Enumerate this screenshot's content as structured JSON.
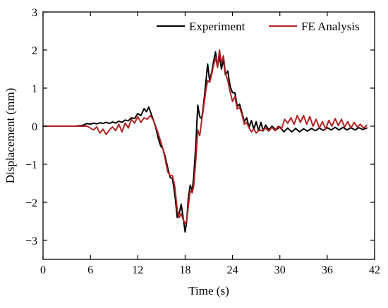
{
  "chart_data": {
    "type": "line",
    "title": "",
    "xlabel": "Time (s)",
    "ylabel": "Displacement (mm)",
    "xlim": [
      0,
      42
    ],
    "ylim": [
      -3.5,
      3
    ],
    "x_ticks": [
      0,
      6,
      12,
      18,
      24,
      30,
      36,
      42
    ],
    "y_ticks": [
      3,
      2,
      1,
      0,
      -1,
      -2,
      -3
    ],
    "x_tick_labels": [
      "0",
      "6",
      "12",
      "18",
      "24",
      "30",
      "36",
      "42"
    ],
    "y_tick_labels": [
      "3",
      "2",
      "1",
      "0",
      "−1",
      "−2",
      "−3"
    ],
    "legend_position": "top-right",
    "grid": false,
    "series": [
      {
        "name": "Experiment",
        "color": "#000000",
        "points": [
          [
            0.0,
            0.0
          ],
          [
            4.0,
            0.0
          ],
          [
            5.0,
            0.02
          ],
          [
            5.6,
            0.07
          ],
          [
            6.0,
            0.05
          ],
          [
            6.4,
            0.08
          ],
          [
            6.8,
            0.06
          ],
          [
            7.2,
            0.09
          ],
          [
            7.6,
            0.07
          ],
          [
            8.0,
            0.1
          ],
          [
            8.4,
            0.07
          ],
          [
            8.8,
            0.11
          ],
          [
            9.2,
            0.08
          ],
          [
            9.6,
            0.13
          ],
          [
            10.0,
            0.1
          ],
          [
            10.4,
            0.16
          ],
          [
            10.8,
            0.14
          ],
          [
            11.2,
            0.22
          ],
          [
            11.6,
            0.2
          ],
          [
            12.0,
            0.33
          ],
          [
            12.4,
            0.28
          ],
          [
            12.8,
            0.46
          ],
          [
            13.1,
            0.38
          ],
          [
            13.4,
            0.5
          ],
          [
            13.7,
            0.32
          ],
          [
            14.0,
            0.15
          ],
          [
            14.3,
            -0.05
          ],
          [
            14.6,
            -0.32
          ],
          [
            14.9,
            -0.52
          ],
          [
            15.2,
            -0.6
          ],
          [
            15.5,
            -0.82
          ],
          [
            15.8,
            -1.1
          ],
          [
            16.1,
            -1.35
          ],
          [
            16.4,
            -1.38
          ],
          [
            16.7,
            -1.8
          ],
          [
            17.0,
            -2.4
          ],
          [
            17.25,
            -2.3
          ],
          [
            17.5,
            -2.05
          ],
          [
            17.75,
            -2.4
          ],
          [
            18.0,
            -2.78
          ],
          [
            18.2,
            -2.5
          ],
          [
            18.4,
            -1.9
          ],
          [
            18.65,
            -1.55
          ],
          [
            18.9,
            -1.7
          ],
          [
            19.1,
            -1.3
          ],
          [
            19.35,
            -0.5
          ],
          [
            19.6,
            0.55
          ],
          [
            19.85,
            0.25
          ],
          [
            20.1,
            0.2
          ],
          [
            20.35,
            0.6
          ],
          [
            20.6,
            1.1
          ],
          [
            20.85,
            1.63
          ],
          [
            21.1,
            1.2
          ],
          [
            21.35,
            1.4
          ],
          [
            21.6,
            1.7
          ],
          [
            21.85,
            1.95
          ],
          [
            22.1,
            1.55
          ],
          [
            22.35,
            1.85
          ],
          [
            22.6,
            1.5
          ],
          [
            22.85,
            1.75
          ],
          [
            23.1,
            1.35
          ],
          [
            23.4,
            1.45
          ],
          [
            23.7,
            1.05
          ],
          [
            24.0,
            0.88
          ],
          [
            24.3,
            0.88
          ],
          [
            24.6,
            0.52
          ],
          [
            24.9,
            0.58
          ],
          [
            25.2,
            0.35
          ],
          [
            25.5,
            0.12
          ],
          [
            25.8,
            0.22
          ],
          [
            26.1,
            -0.03
          ],
          [
            26.4,
            0.15
          ],
          [
            26.7,
            -0.08
          ],
          [
            27.0,
            0.12
          ],
          [
            27.3,
            -0.12
          ],
          [
            27.6,
            0.1
          ],
          [
            27.9,
            -0.12
          ],
          [
            28.2,
            0.03
          ],
          [
            28.6,
            -0.1
          ],
          [
            29.0,
            0.0
          ],
          [
            29.5,
            -0.1
          ],
          [
            30.0,
            -0.02
          ],
          [
            30.5,
            -0.15
          ],
          [
            31.0,
            -0.05
          ],
          [
            31.5,
            -0.15
          ],
          [
            32.0,
            -0.06
          ],
          [
            32.5,
            -0.15
          ],
          [
            33.0,
            -0.07
          ],
          [
            33.5,
            -0.13
          ],
          [
            34.0,
            -0.06
          ],
          [
            34.5,
            -0.12
          ],
          [
            35.0,
            -0.05
          ],
          [
            35.5,
            -0.11
          ],
          [
            36.0,
            -0.04
          ],
          [
            36.5,
            -0.1
          ],
          [
            37.0,
            -0.03
          ],
          [
            37.5,
            -0.1
          ],
          [
            38.0,
            -0.03
          ],
          [
            38.5,
            -0.1
          ],
          [
            39.0,
            -0.04
          ],
          [
            39.5,
            -0.1
          ],
          [
            40.0,
            -0.04
          ],
          [
            40.5,
            -0.09
          ],
          [
            41.0,
            -0.05
          ]
        ]
      },
      {
        "name": "FE Analysis",
        "color": "#b22222",
        "points": [
          [
            0.0,
            0.0
          ],
          [
            5.6,
            0.0
          ],
          [
            6.0,
            -0.05
          ],
          [
            6.4,
            -0.1
          ],
          [
            6.8,
            -0.02
          ],
          [
            7.2,
            -0.18
          ],
          [
            7.6,
            -0.08
          ],
          [
            8.0,
            -0.22
          ],
          [
            8.4,
            -0.1
          ],
          [
            8.8,
            -0.02
          ],
          [
            9.2,
            -0.12
          ],
          [
            9.6,
            0.05
          ],
          [
            10.0,
            -0.15
          ],
          [
            10.4,
            0.08
          ],
          [
            10.8,
            -0.05
          ],
          [
            11.2,
            0.18
          ],
          [
            11.6,
            0.08
          ],
          [
            12.0,
            0.25
          ],
          [
            12.4,
            0.1
          ],
          [
            12.8,
            0.22
          ],
          [
            13.2,
            0.18
          ],
          [
            13.6,
            0.28
          ],
          [
            14.0,
            0.15
          ],
          [
            14.3,
            -0.02
          ],
          [
            14.6,
            -0.2
          ],
          [
            14.9,
            -0.4
          ],
          [
            15.2,
            -0.6
          ],
          [
            15.5,
            -0.9
          ],
          [
            15.8,
            -1.2
          ],
          [
            16.1,
            -1.3
          ],
          [
            16.4,
            -1.3
          ],
          [
            16.7,
            -1.6
          ],
          [
            17.0,
            -2.2
          ],
          [
            17.25,
            -2.4
          ],
          [
            17.5,
            -2.3
          ],
          [
            17.75,
            -2.45
          ],
          [
            18.0,
            -2.55
          ],
          [
            18.2,
            -2.5
          ],
          [
            18.4,
            -2.1
          ],
          [
            18.65,
            -1.7
          ],
          [
            18.9,
            -1.75
          ],
          [
            19.1,
            -1.55
          ],
          [
            19.35,
            -0.9
          ],
          [
            19.6,
            -0.1
          ],
          [
            19.85,
            -0.25
          ],
          [
            20.1,
            0.15
          ],
          [
            20.35,
            0.5
          ],
          [
            20.6,
            0.9
          ],
          [
            20.85,
            1.2
          ],
          [
            21.1,
            1.15
          ],
          [
            21.35,
            1.35
          ],
          [
            21.6,
            1.6
          ],
          [
            21.85,
            1.8
          ],
          [
            22.1,
            1.55
          ],
          [
            22.35,
            2.0
          ],
          [
            22.6,
            1.65
          ],
          [
            22.85,
            1.85
          ],
          [
            23.1,
            1.4
          ],
          [
            23.4,
            1.2
          ],
          [
            23.7,
            0.9
          ],
          [
            24.0,
            0.65
          ],
          [
            24.3,
            0.78
          ],
          [
            24.6,
            0.45
          ],
          [
            24.9,
            0.5
          ],
          [
            25.2,
            0.3
          ],
          [
            25.5,
            0.05
          ],
          [
            25.8,
            0.1
          ],
          [
            26.1,
            -0.05
          ],
          [
            26.4,
            -0.15
          ],
          [
            26.7,
            -0.08
          ],
          [
            27.0,
            -0.18
          ],
          [
            27.4,
            -0.1
          ],
          [
            27.8,
            -0.12
          ],
          [
            28.2,
            -0.05
          ],
          [
            28.6,
            -0.13
          ],
          [
            29.0,
            -0.03
          ],
          [
            29.4,
            -0.12
          ],
          [
            29.8,
            0.0
          ],
          [
            30.2,
            -0.08
          ],
          [
            30.6,
            0.18
          ],
          [
            31.0,
            0.08
          ],
          [
            31.4,
            0.22
          ],
          [
            31.8,
            0.05
          ],
          [
            32.2,
            0.28
          ],
          [
            32.6,
            0.1
          ],
          [
            33.0,
            0.28
          ],
          [
            33.4,
            0.05
          ],
          [
            33.8,
            0.25
          ],
          [
            34.2,
            0.0
          ],
          [
            34.6,
            0.18
          ],
          [
            35.0,
            -0.05
          ],
          [
            35.4,
            0.12
          ],
          [
            35.8,
            -0.08
          ],
          [
            36.2,
            0.15
          ],
          [
            36.6,
            0.0
          ],
          [
            37.0,
            0.2
          ],
          [
            37.4,
            0.02
          ],
          [
            37.8,
            0.18
          ],
          [
            38.2,
            -0.02
          ],
          [
            38.6,
            0.12
          ],
          [
            39.0,
            -0.05
          ],
          [
            39.4,
            0.1
          ],
          [
            39.8,
            -0.02
          ],
          [
            40.2,
            0.05
          ],
          [
            40.6,
            -0.05
          ],
          [
            41.0,
            0.02
          ]
        ]
      }
    ]
  }
}
